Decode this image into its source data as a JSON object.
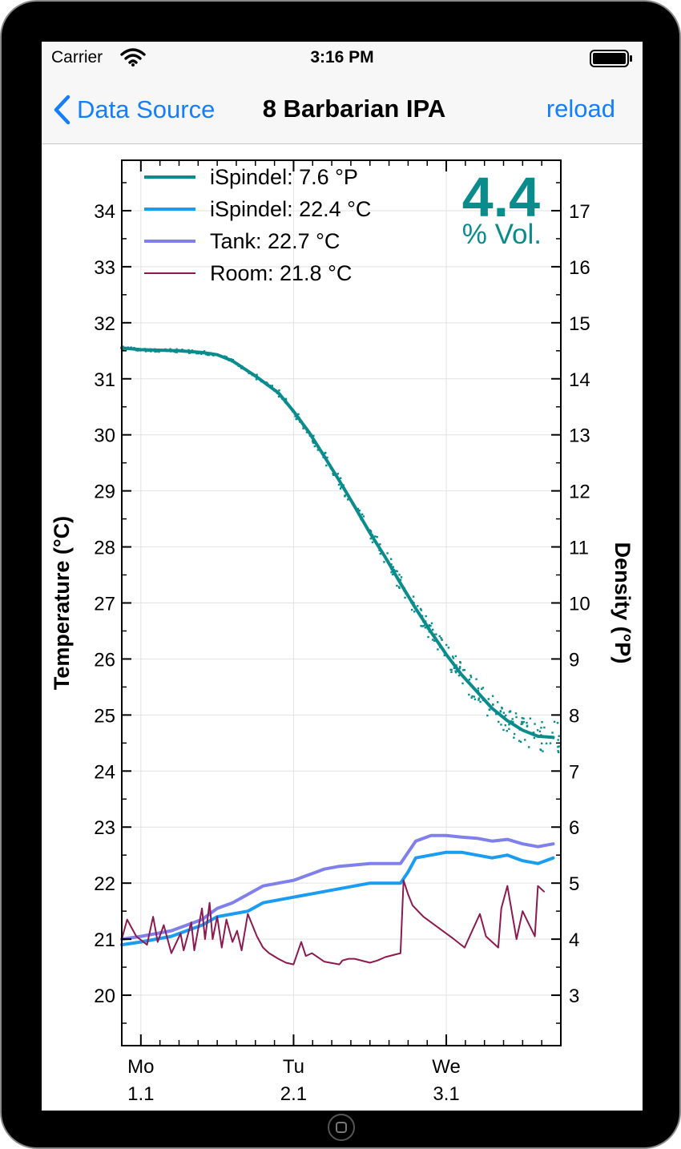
{
  "status_bar": {
    "carrier": "Carrier",
    "time": "3:16 PM"
  },
  "nav": {
    "back_label": "Data Source",
    "title": "8 Barbarian IPA",
    "reload_label": "reload"
  },
  "colors": {
    "ios_blue": "#147efb",
    "ispindel_density": "#0b8c8c",
    "ispindel_temp": "#1a9cf0",
    "tank": "#8080ec",
    "room": "#8c1a50"
  },
  "chart_data": {
    "type": "line",
    "title": "",
    "alcohol": {
      "value": "4.4",
      "unit": "% Vol."
    },
    "x_ticks": [
      {
        "day": "Mo",
        "date": "1.1",
        "x": 0
      },
      {
        "day": "Tu",
        "date": "2.1",
        "x": 1
      },
      {
        "day": "We",
        "date": "3.1",
        "x": 2
      }
    ],
    "xlim": [
      -0.125,
      2.75
    ],
    "ylabel_left": "Temperature (°C)",
    "ylabel_right": "Density (°P)",
    "ylim_left": [
      19.1,
      34.9
    ],
    "ylim_right": [
      2.1,
      17.9
    ],
    "yticks_left": [
      20,
      21,
      22,
      23,
      24,
      25,
      26,
      27,
      28,
      29,
      30,
      31,
      32,
      33,
      34
    ],
    "yticks_right": [
      3,
      4,
      5,
      6,
      7,
      8,
      9,
      10,
      11,
      12,
      13,
      14,
      15,
      16,
      17
    ],
    "grid": true,
    "legend_position": "top-left",
    "series": [
      {
        "name": "iSpindel: 7.6 °P",
        "axis": "right",
        "color": "#0b8c8c",
        "x": [
          -0.125,
          0,
          0.25,
          0.4,
          0.5,
          0.6,
          0.75,
          0.9,
          1.0,
          1.1,
          1.2,
          1.3,
          1.4,
          1.5,
          1.6,
          1.7,
          1.8,
          1.9,
          2.0,
          2.1,
          2.2,
          2.3,
          2.4,
          2.5,
          2.6,
          2.7
        ],
        "values": [
          14.55,
          14.52,
          14.5,
          14.47,
          14.43,
          14.32,
          14.05,
          13.75,
          13.42,
          13.05,
          12.62,
          12.18,
          11.72,
          11.25,
          10.82,
          10.35,
          9.9,
          9.48,
          9.08,
          8.72,
          8.42,
          8.12,
          7.9,
          7.73,
          7.62,
          7.6
        ]
      },
      {
        "name": "iSpindel: 22.4 °C",
        "axis": "left",
        "color": "#1a9cf0",
        "x": [
          -0.125,
          0,
          0.2,
          0.4,
          0.5,
          0.6,
          0.7,
          0.8,
          1.0,
          1.1,
          1.2,
          1.3,
          1.5,
          1.7,
          1.75,
          1.8,
          1.9,
          2.0,
          2.1,
          2.2,
          2.3,
          2.4,
          2.5,
          2.6,
          2.7
        ],
        "values": [
          20.9,
          20.95,
          21.05,
          21.25,
          21.4,
          21.45,
          21.5,
          21.65,
          21.75,
          21.8,
          21.85,
          21.9,
          22.0,
          22.0,
          22.2,
          22.45,
          22.5,
          22.55,
          22.55,
          22.5,
          22.45,
          22.5,
          22.4,
          22.35,
          22.45
        ]
      },
      {
        "name": "Tank: 22.7 °C",
        "axis": "left",
        "color": "#8080ec",
        "x": [
          -0.125,
          0,
          0.2,
          0.4,
          0.5,
          0.6,
          0.7,
          0.8,
          1.0,
          1.1,
          1.2,
          1.3,
          1.5,
          1.7,
          1.75,
          1.8,
          1.9,
          2.0,
          2.1,
          2.2,
          2.3,
          2.4,
          2.5,
          2.6,
          2.7
        ],
        "values": [
          21.0,
          21.05,
          21.15,
          21.35,
          21.55,
          21.65,
          21.8,
          21.95,
          22.05,
          22.15,
          22.25,
          22.3,
          22.35,
          22.35,
          22.55,
          22.75,
          22.85,
          22.85,
          22.82,
          22.8,
          22.75,
          22.78,
          22.7,
          22.65,
          22.7
        ]
      },
      {
        "name": "Room: 21.8 °C",
        "axis": "left",
        "color": "#8c1a50",
        "x": [
          -0.125,
          -0.09,
          -0.03,
          0.04,
          0.08,
          0.11,
          0.15,
          0.2,
          0.26,
          0.28,
          0.33,
          0.35,
          0.4,
          0.42,
          0.45,
          0.47,
          0.5,
          0.53,
          0.56,
          0.6,
          0.63,
          0.66,
          0.7,
          0.76,
          0.8,
          0.84,
          0.9,
          0.95,
          1.0,
          1.05,
          1.08,
          1.12,
          1.2,
          1.3,
          1.32,
          1.36,
          1.4,
          1.5,
          1.55,
          1.6,
          1.7,
          1.72,
          1.75,
          1.78,
          1.85,
          1.95,
          2.05,
          2.12,
          2.17,
          2.22,
          2.26,
          2.34,
          2.36,
          2.4,
          2.46,
          2.5,
          2.58,
          2.6,
          2.64
        ],
        "values": [
          21.0,
          21.35,
          21.05,
          20.9,
          21.4,
          20.95,
          21.25,
          20.75,
          21.1,
          20.8,
          21.3,
          20.8,
          21.55,
          21.0,
          21.65,
          21.0,
          21.4,
          20.85,
          21.35,
          20.95,
          21.15,
          20.8,
          21.45,
          21.05,
          20.85,
          20.75,
          20.65,
          20.58,
          20.55,
          20.95,
          20.7,
          20.75,
          20.6,
          20.55,
          20.62,
          20.65,
          20.65,
          20.58,
          20.62,
          20.68,
          20.75,
          22.05,
          21.8,
          21.6,
          21.4,
          21.2,
          21.0,
          20.85,
          21.15,
          21.45,
          21.05,
          20.85,
          21.55,
          21.95,
          21.0,
          21.5,
          21.05,
          21.95,
          21.85
        ]
      }
    ]
  }
}
